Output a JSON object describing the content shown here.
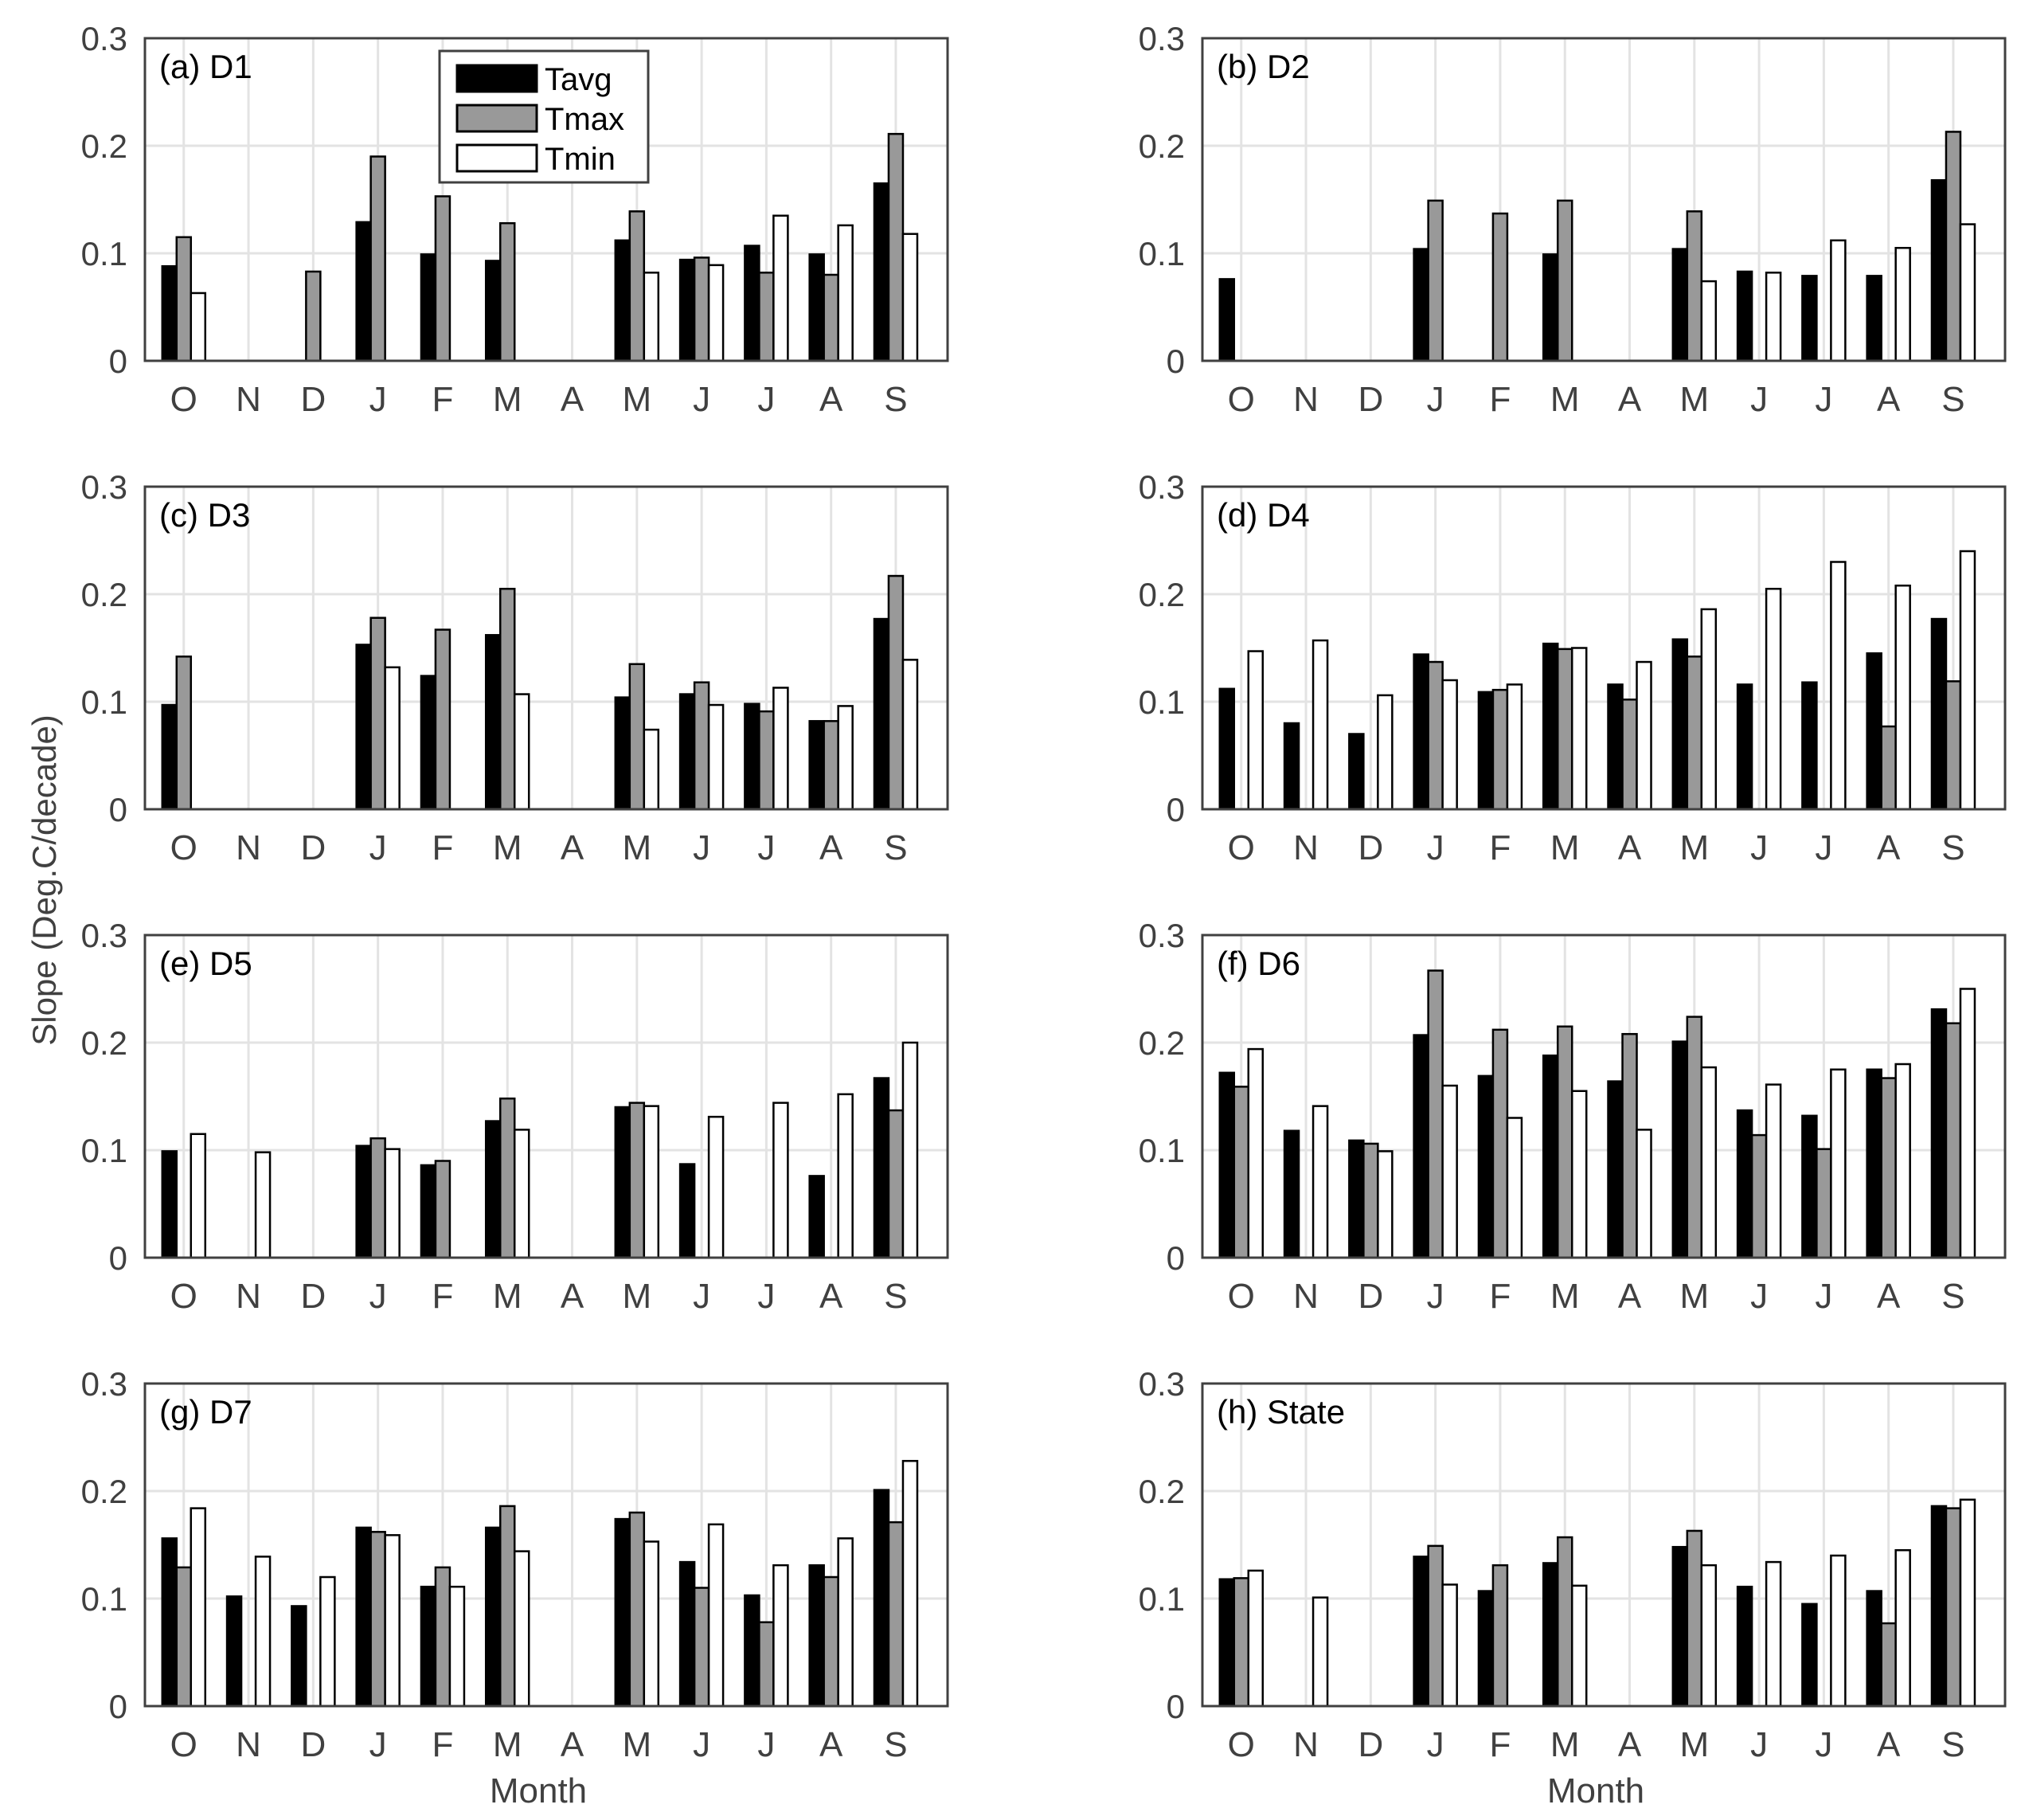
{
  "figure": {
    "ylabel": "Slope (Deg.C/decade)",
    "xlabel": "Month",
    "colors": {
      "Tavg": "#000000",
      "Tmax": "#999999",
      "Tmin": "#ffffff",
      "axis": "#404040",
      "grid": "#e3e3e3",
      "text": "#404040"
    },
    "legend": [
      "Tavg",
      "Tmax",
      "Tmin"
    ]
  },
  "chart_data": [
    {
      "type": "bar",
      "title": "(a) D1",
      "categories": [
        "O",
        "N",
        "D",
        "J",
        "F",
        "M",
        "A",
        "M",
        "J",
        "J",
        "A",
        "S"
      ],
      "yticks": [
        "0",
        "0.1",
        "0.2",
        "0.3"
      ],
      "ylim": [
        0,
        0.3
      ],
      "series": [
        {
          "name": "Tavg",
          "values": [
            0.088,
            null,
            null,
            0.129,
            0.099,
            0.093,
            null,
            0.112,
            0.094,
            0.107,
            0.099,
            0.165
          ]
        },
        {
          "name": "Tmax",
          "values": [
            0.115,
            null,
            0.083,
            0.19,
            0.153,
            0.128,
            null,
            0.139,
            0.096,
            0.082,
            0.08,
            0.211
          ]
        },
        {
          "name": "Tmin",
          "values": [
            0.063,
            null,
            null,
            null,
            null,
            null,
            null,
            0.082,
            0.089,
            0.135,
            0.126,
            0.118
          ]
        }
      ]
    },
    {
      "type": "bar",
      "title": "(b) D2",
      "categories": [
        "O",
        "N",
        "D",
        "J",
        "F",
        "M",
        "A",
        "M",
        "J",
        "J",
        "A",
        "S"
      ],
      "yticks": [
        "0",
        "0.1",
        "0.2",
        "0.3"
      ],
      "ylim": [
        0,
        0.3
      ],
      "series": [
        {
          "name": "Tavg",
          "values": [
            0.076,
            null,
            null,
            0.104,
            null,
            0.099,
            null,
            0.104,
            0.083,
            0.079,
            0.079,
            0.168
          ]
        },
        {
          "name": "Tmax",
          "values": [
            null,
            null,
            null,
            0.149,
            0.137,
            0.149,
            null,
            0.139,
            null,
            null,
            null,
            0.213
          ]
        },
        {
          "name": "Tmin",
          "values": [
            null,
            null,
            null,
            null,
            null,
            null,
            null,
            0.074,
            0.082,
            0.112,
            0.105,
            0.127
          ]
        }
      ]
    },
    {
      "type": "bar",
      "title": "(c) D3",
      "categories": [
        "O",
        "N",
        "D",
        "J",
        "F",
        "M",
        "A",
        "M",
        "J",
        "J",
        "A",
        "S"
      ],
      "yticks": [
        "0",
        "0.1",
        "0.2",
        "0.3"
      ],
      "ylim": [
        0,
        0.3
      ],
      "series": [
        {
          "name": "Tavg",
          "values": [
            0.097,
            null,
            null,
            0.153,
            0.124,
            0.162,
            null,
            0.104,
            0.107,
            0.098,
            0.082,
            0.177
          ]
        },
        {
          "name": "Tmax",
          "values": [
            0.142,
            null,
            null,
            0.178,
            0.167,
            0.205,
            null,
            0.135,
            0.118,
            0.091,
            0.082,
            0.217
          ]
        },
        {
          "name": "Tmin",
          "values": [
            null,
            null,
            null,
            0.132,
            null,
            0.107,
            null,
            0.074,
            0.097,
            0.113,
            0.096,
            0.139
          ]
        }
      ]
    },
    {
      "type": "bar",
      "title": "(d) D4",
      "categories": [
        "O",
        "N",
        "D",
        "J",
        "F",
        "M",
        "A",
        "M",
        "J",
        "J",
        "A",
        "S"
      ],
      "yticks": [
        "0",
        "0.1",
        "0.2",
        "0.3"
      ],
      "ylim": [
        0,
        0.3
      ],
      "series": [
        {
          "name": "Tavg",
          "values": [
            0.112,
            0.08,
            0.07,
            0.144,
            0.109,
            0.154,
            0.116,
            0.158,
            0.116,
            0.118,
            0.145,
            0.177
          ]
        },
        {
          "name": "Tmax",
          "values": [
            null,
            null,
            null,
            0.137,
            0.111,
            0.149,
            0.102,
            0.142,
            null,
            null,
            0.077,
            0.119
          ]
        },
        {
          "name": "Tmin",
          "values": [
            0.147,
            0.157,
            0.106,
            0.12,
            0.116,
            0.15,
            0.137,
            0.186,
            0.205,
            0.23,
            0.208,
            0.24
          ]
        }
      ]
    },
    {
      "type": "bar",
      "title": "(e) D5",
      "categories": [
        "O",
        "N",
        "D",
        "J",
        "F",
        "M",
        "A",
        "M",
        "J",
        "J",
        "A",
        "S"
      ],
      "yticks": [
        "0",
        "0.1",
        "0.2",
        "0.3"
      ],
      "ylim": [
        0,
        0.3
      ],
      "series": [
        {
          "name": "Tavg",
          "values": [
            0.099,
            null,
            null,
            0.104,
            0.086,
            0.127,
            null,
            0.14,
            0.087,
            null,
            0.076,
            0.167
          ]
        },
        {
          "name": "Tmax",
          "values": [
            null,
            null,
            null,
            0.111,
            0.09,
            0.148,
            null,
            0.144,
            null,
            null,
            null,
            0.137
          ]
        },
        {
          "name": "Tmin",
          "values": [
            0.115,
            0.098,
            null,
            0.101,
            null,
            0.119,
            null,
            0.141,
            0.131,
            0.144,
            0.152,
            0.2
          ]
        }
      ]
    },
    {
      "type": "bar",
      "title": "(f) D6",
      "categories": [
        "O",
        "N",
        "D",
        "J",
        "F",
        "M",
        "A",
        "M",
        "J",
        "J",
        "A",
        "S"
      ],
      "yticks": [
        "0",
        "0.1",
        "0.2",
        "0.3"
      ],
      "ylim": [
        0,
        0.3
      ],
      "series": [
        {
          "name": "Tavg",
          "values": [
            0.172,
            0.118,
            0.109,
            0.207,
            0.169,
            0.188,
            0.164,
            0.201,
            0.137,
            0.132,
            0.175,
            0.231
          ]
        },
        {
          "name": "Tmax",
          "values": [
            0.159,
            null,
            0.106,
            0.267,
            0.212,
            0.215,
            0.208,
            0.224,
            0.114,
            0.101,
            0.167,
            0.218
          ]
        },
        {
          "name": "Tmin",
          "values": [
            0.194,
            0.141,
            0.099,
            0.16,
            0.13,
            0.155,
            0.119,
            0.177,
            0.161,
            0.175,
            0.18,
            0.25
          ]
        }
      ]
    },
    {
      "type": "bar",
      "title": "(g) D7",
      "categories": [
        "O",
        "N",
        "D",
        "J",
        "F",
        "M",
        "A",
        "M",
        "J",
        "J",
        "A",
        "S"
      ],
      "yticks": [
        "0",
        "0.1",
        "0.2",
        "0.3"
      ],
      "ylim": [
        0,
        0.3
      ],
      "series": [
        {
          "name": "Tavg",
          "values": [
            0.156,
            0.102,
            0.093,
            0.166,
            0.111,
            0.166,
            null,
            0.174,
            0.134,
            0.103,
            0.131,
            0.201
          ]
        },
        {
          "name": "Tmax",
          "values": [
            0.129,
            null,
            null,
            0.162,
            0.129,
            0.186,
            null,
            0.18,
            0.11,
            0.078,
            0.12,
            0.171
          ]
        },
        {
          "name": "Tmin",
          "values": [
            0.184,
            0.139,
            0.12,
            0.159,
            0.111,
            0.144,
            null,
            0.153,
            0.169,
            0.131,
            0.156,
            0.228
          ]
        }
      ]
    },
    {
      "type": "bar",
      "title": "(h) State",
      "categories": [
        "O",
        "N",
        "D",
        "J",
        "F",
        "M",
        "A",
        "M",
        "J",
        "J",
        "A",
        "S"
      ],
      "yticks": [
        "0",
        "0.1",
        "0.2",
        "0.3"
      ],
      "ylim": [
        0,
        0.3
      ],
      "series": [
        {
          "name": "Tavg",
          "values": [
            0.118,
            null,
            null,
            0.139,
            0.107,
            0.133,
            null,
            0.148,
            0.111,
            0.095,
            0.107,
            0.186
          ]
        },
        {
          "name": "Tmax",
          "values": [
            0.119,
            null,
            null,
            0.149,
            0.131,
            0.157,
            null,
            0.163,
            null,
            null,
            0.077,
            0.184
          ]
        },
        {
          "name": "Tmin",
          "values": [
            0.126,
            0.101,
            null,
            0.113,
            null,
            0.112,
            null,
            0.131,
            0.134,
            0.14,
            0.145,
            0.192
          ]
        }
      ]
    }
  ]
}
